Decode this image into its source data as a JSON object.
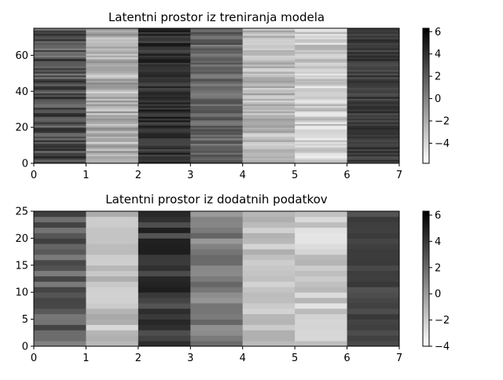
{
  "chart_data": [
    {
      "type": "heatmap",
      "title": "Latentni prostor iz treniranja modela",
      "xlabel": "",
      "ylabel": "",
      "xlim": [
        0,
        7
      ],
      "ylim": [
        0,
        75
      ],
      "columns": 7,
      "rows": 75,
      "x_ticks": [
        "0",
        "1",
        "2",
        "3",
        "4",
        "5",
        "6",
        "7"
      ],
      "y_ticks": [
        "0",
        "20",
        "40",
        "60"
      ],
      "y_tick_values": [
        0,
        20,
        40,
        60
      ],
      "colormap": "gray_r",
      "vmin": -5.8,
      "vmax": 6.3,
      "colorbar_ticks": [
        "6",
        "4",
        "2",
        "0",
        "−2",
        "−4"
      ],
      "colorbar_tick_values": [
        6,
        4,
        2,
        0,
        -2,
        -4
      ],
      "column_mean_values": [
        2.5,
        -2.0,
        4.0,
        1.5,
        -2.5,
        -3.5,
        3.5
      ],
      "column_spread": [
        1.6,
        1.3,
        0.9,
        1.0,
        1.0,
        1.1,
        0.7
      ]
    },
    {
      "type": "heatmap",
      "title": "Latentni prostor iz dodatnih podatkov",
      "xlabel": "",
      "ylabel": "",
      "xlim": [
        0,
        7
      ],
      "ylim": [
        0,
        25
      ],
      "columns": 7,
      "rows": 25,
      "x_ticks": [
        "0",
        "1",
        "2",
        "3",
        "4",
        "5",
        "6",
        "7"
      ],
      "y_ticks": [
        "0",
        "5",
        "10",
        "15",
        "20",
        "25"
      ],
      "y_tick_values": [
        0,
        5,
        10,
        15,
        20,
        25
      ],
      "colormap": "gray_r",
      "vmin": -4.0,
      "vmax": 6.3,
      "colorbar_ticks": [
        "6",
        "4",
        "2",
        "0",
        "−2",
        "−4"
      ],
      "colorbar_tick_values": [
        6,
        4,
        2,
        0,
        -2,
        -4
      ],
      "column_mean_values": [
        2.5,
        -1.5,
        4.0,
        1.0,
        -1.5,
        -2.0,
        3.5
      ],
      "column_spread": [
        1.1,
        0.7,
        0.8,
        0.9,
        0.6,
        0.8,
        0.4
      ]
    }
  ],
  "colors": {
    "low": "#ffffff",
    "high": "#000000",
    "axis": "#000000"
  }
}
